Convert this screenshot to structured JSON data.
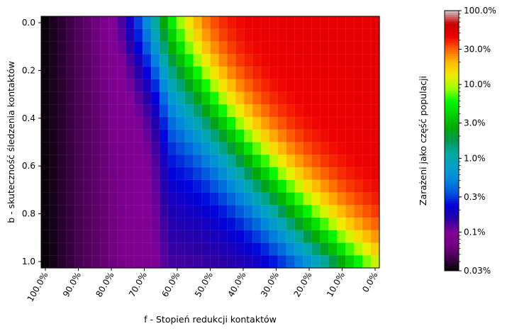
{
  "chart_data": {
    "type": "heatmap",
    "colormap": "nipy_spectral",
    "xlabel": "f - Stopień redukcji kontaktów",
    "ylabel": "b - skuteczność śledzenia kontaktów",
    "colorbar_label": "Zarażeni jako część populacji",
    "x_range": [
      1.0,
      0.0
    ],
    "x_ticks": [
      1.0,
      0.9,
      0.8,
      0.7,
      0.6,
      0.5,
      0.4,
      0.3,
      0.2,
      0.1,
      0.0
    ],
    "x_tick_labels": [
      "100.0%",
      "90.0%",
      "80.0%",
      "70.0%",
      "60.0%",
      "50.0%",
      "40.0%",
      "30.0%",
      "20.0%",
      "10.0%",
      "0.0%"
    ],
    "y_range": [
      0.0,
      1.0
    ],
    "y_ticks": [
      0.0,
      0.2,
      0.4,
      0.6,
      0.8,
      1.0
    ],
    "y_tick_labels": [
      "0.0",
      "0.2",
      "0.4",
      "0.6",
      "0.8",
      "1.0"
    ],
    "colorbar_scale": "log",
    "colorbar_range": [
      0.0003,
      1.0
    ],
    "colorbar_ticks": [
      0.0003,
      0.001,
      0.003,
      0.01,
      0.03,
      0.1,
      0.3,
      1.0
    ],
    "colorbar_tick_labels": [
      "0.03%",
      "0.1%",
      "0.3%",
      "1.0%",
      "3.0%",
      "10.0%",
      "30.0%",
      "100.0%"
    ],
    "grid_columns": 40,
    "grid_rows": 20,
    "color_stops": [
      {
        "v": 0.0,
        "color": "#000000"
      },
      {
        "v": 0.05,
        "color": "#470051"
      },
      {
        "v": 0.1,
        "color": "#780088"
      },
      {
        "v": 0.15,
        "color": "#820096"
      },
      {
        "v": 0.2,
        "color": "#2a00a6"
      },
      {
        "v": 0.25,
        "color": "#0000dd"
      },
      {
        "v": 0.3,
        "color": "#0055dd"
      },
      {
        "v": 0.35,
        "color": "#0088dd"
      },
      {
        "v": 0.4,
        "color": "#00a0c8"
      },
      {
        "v": 0.45,
        "color": "#00aaa0"
      },
      {
        "v": 0.5,
        "color": "#009a55"
      },
      {
        "v": 0.55,
        "color": "#00aa00"
      },
      {
        "v": 0.6,
        "color": "#00d000"
      },
      {
        "v": 0.65,
        "color": "#00f700"
      },
      {
        "v": 0.7,
        "color": "#99ff00"
      },
      {
        "v": 0.75,
        "color": "#eeee00"
      },
      {
        "v": 0.8,
        "color": "#ffbb00"
      },
      {
        "v": 0.85,
        "color": "#ff6600"
      },
      {
        "v": 0.9,
        "color": "#ee0000"
      },
      {
        "v": 0.95,
        "color": "#cc0000"
      },
      {
        "v": 1.0,
        "color": "#cccccc"
      }
    ]
  }
}
